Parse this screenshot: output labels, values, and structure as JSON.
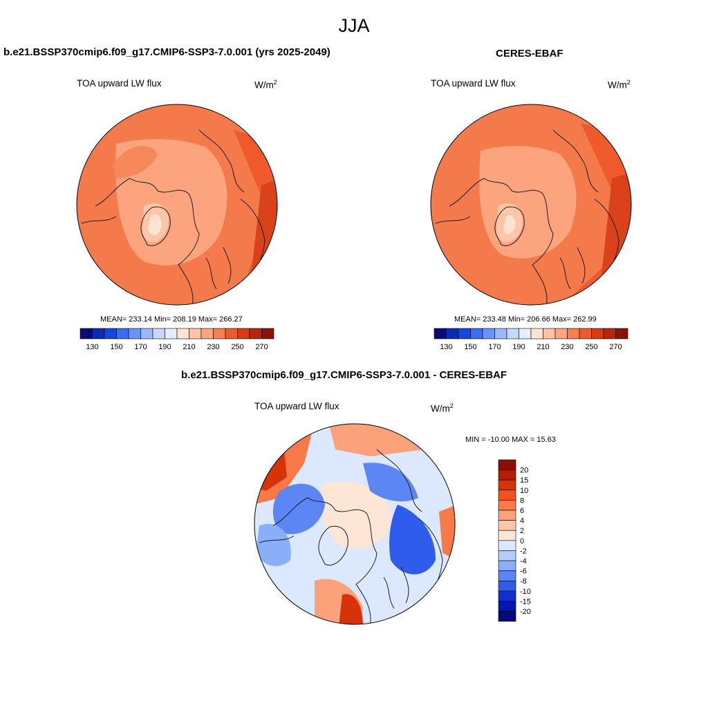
{
  "figure": {
    "season": "JJA",
    "units_base": "W/m",
    "units_exp": "2"
  },
  "panels": {
    "model": {
      "title": "b.e21.BSSP370cmip6.f09_g17.CMIP6-SSP3-7.0.001 (yrs 2025-2049)",
      "variable": "TOA upward LW flux",
      "stats": "MEAN= 233.14  Min= 208.19  Max= 266.27"
    },
    "obs": {
      "title": "CERES-EBAF",
      "variable": "TOA upward LW flux",
      "stats": "MEAN= 233.48  Min= 206.66  Max= 262.99"
    },
    "diff": {
      "title": "b.e21.BSSP370cmip6.f09_g17.CMIP6-SSP3-7.0.001 - CERES-EBAF",
      "variable": "TOA upward LW flux",
      "stats": "MIN = -10.00 MAX =  15.63"
    }
  },
  "chart_data": [
    {
      "type": "heatmap",
      "projection": "north polar stereographic",
      "title": "b.e21.BSSP370cmip6.f09_g17.CMIP6-SSP3-7.0.001 (yrs 2025-2049)",
      "variable": "TOA upward LW flux",
      "units": "W/m2",
      "mean": 233.14,
      "min": 208.19,
      "max": 266.27,
      "colorbar_ticks": [
        "130",
        "150",
        "170",
        "190",
        "210",
        "230",
        "250",
        "270"
      ],
      "colorbar_colors": [
        "#0a0a7a",
        "#0b2bb0",
        "#1646e0",
        "#3a6cf5",
        "#6a93f8",
        "#9bb8fa",
        "#c6d8fc",
        "#e6eefe",
        "#fde4d2",
        "#fcc3a4",
        "#fba47d",
        "#f77f52",
        "#f05a2b",
        "#d93a14",
        "#b8250b",
        "#8a1206"
      ]
    },
    {
      "type": "heatmap",
      "projection": "north polar stereographic",
      "title": "CERES-EBAF",
      "variable": "TOA upward LW flux",
      "units": "W/m2",
      "mean": 233.48,
      "min": 206.66,
      "max": 262.99,
      "colorbar_ticks": [
        "130",
        "150",
        "170",
        "190",
        "210",
        "230",
        "250",
        "270"
      ],
      "colorbar_colors": [
        "#0a0a7a",
        "#0b2bb0",
        "#1646e0",
        "#3a6cf5",
        "#6a93f8",
        "#9bb8fa",
        "#c6d8fc",
        "#e6eefe",
        "#fde4d2",
        "#fcc3a4",
        "#fba47d",
        "#f77f52",
        "#f05a2b",
        "#d93a14",
        "#b8250b",
        "#8a1206"
      ]
    },
    {
      "type": "heatmap",
      "projection": "north polar stereographic",
      "title": "b.e21.BSSP370cmip6.f09_g17.CMIP6-SSP3-7.0.001 - CERES-EBAF",
      "variable": "TOA upward LW flux",
      "units": "W/m2",
      "min": -10.0,
      "max": 15.63,
      "colorbar_levels": [
        "20",
        "15",
        "10",
        "8",
        "6",
        "4",
        "2",
        "0",
        "-2",
        "-4",
        "-6",
        "-8",
        "-10",
        "-15",
        "-20"
      ],
      "colorbar_colors": [
        "#8a0f00",
        "#b21e02",
        "#d6330a",
        "#f0521f",
        "#f97a48",
        "#fba27a",
        "#fdc7a9",
        "#fde6d5",
        "#dce8fd",
        "#b4cdfb",
        "#8aaef8",
        "#5c86f3",
        "#2f5cec",
        "#0f2fd0",
        "#0616a8",
        "#04087a"
      ]
    }
  ]
}
